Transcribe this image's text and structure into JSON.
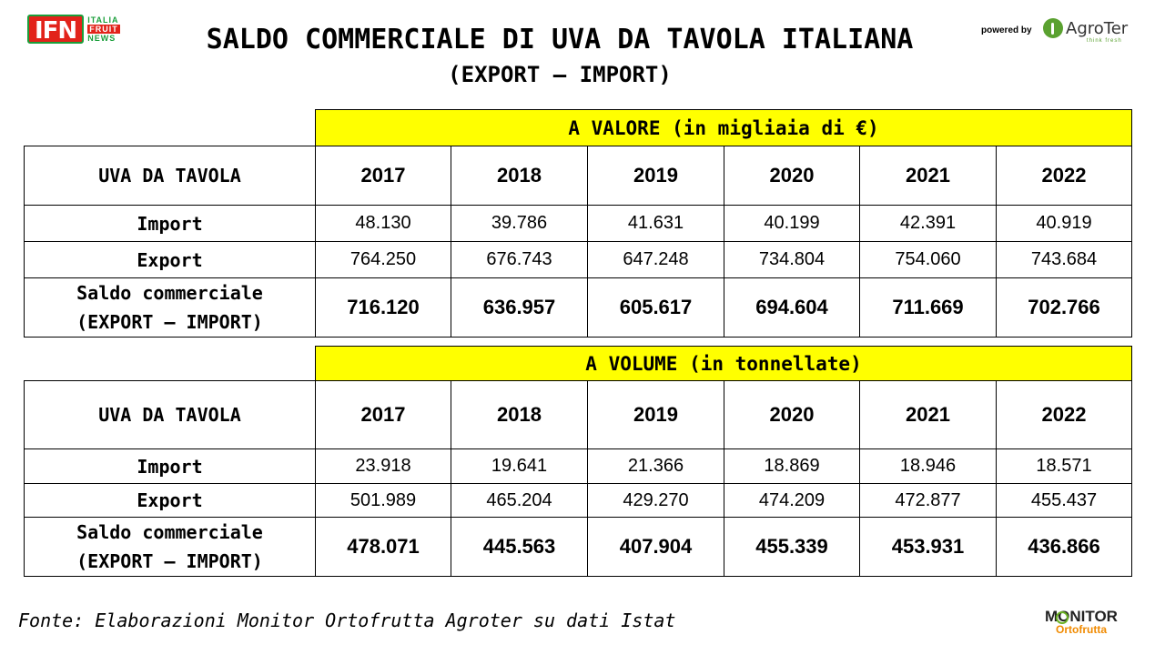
{
  "logos": {
    "ifn": {
      "main": "IFN",
      "line1": "ITALIA",
      "line2": "FRUIT",
      "line3": "NEWS"
    },
    "powered_by": "powered by",
    "agroter": {
      "name": "AgroTer",
      "tagline": "think fresh"
    },
    "monitor": {
      "line1": "MONITOR",
      "line2": "Ortofrutta"
    }
  },
  "title": "SALDO COMMERCIALE DI UVA DA TAVOLA ITALIANA",
  "subtitle": "(EXPORT – IMPORT)",
  "table_value": {
    "header": "A VALORE (in migliaia di €)",
    "row_label": "UVA DA TAVOLA",
    "years": [
      "2017",
      "2018",
      "2019",
      "2020",
      "2021",
      "2022"
    ],
    "import_label": "Import",
    "import": [
      "48.130",
      "39.786",
      "41.631",
      "40.199",
      "42.391",
      "40.919"
    ],
    "export_label": "Export",
    "export": [
      "764.250",
      "676.743",
      "647.248",
      "734.804",
      "754.060",
      "743.684"
    ],
    "saldo_label_1": "Saldo commerciale",
    "saldo_label_2": "(EXPORT – IMPORT)",
    "saldo": [
      "716.120",
      "636.957",
      "605.617",
      "694.604",
      "711.669",
      "702.766"
    ]
  },
  "table_volume": {
    "header": "A VOLUME (in tonnellate)",
    "row_label": "UVA DA TAVOLA",
    "years": [
      "2017",
      "2018",
      "2019",
      "2020",
      "2021",
      "2022"
    ],
    "import_label": "Import",
    "import": [
      "23.918",
      "19.641",
      "21.366",
      "18.869",
      "18.946",
      "18.571"
    ],
    "export_label": "Export",
    "export": [
      "501.989",
      "465.204",
      "429.270",
      "474.209",
      "472.877",
      "455.437"
    ],
    "saldo_label_1": "Saldo commerciale",
    "saldo_label_2": "(EXPORT – IMPORT)",
    "saldo": [
      "478.071",
      "445.563",
      "407.904",
      "455.339",
      "453.931",
      "436.866"
    ]
  },
  "source": "Fonte: Elaborazioni Monitor Ortofrutta Agroter su dati Istat"
}
